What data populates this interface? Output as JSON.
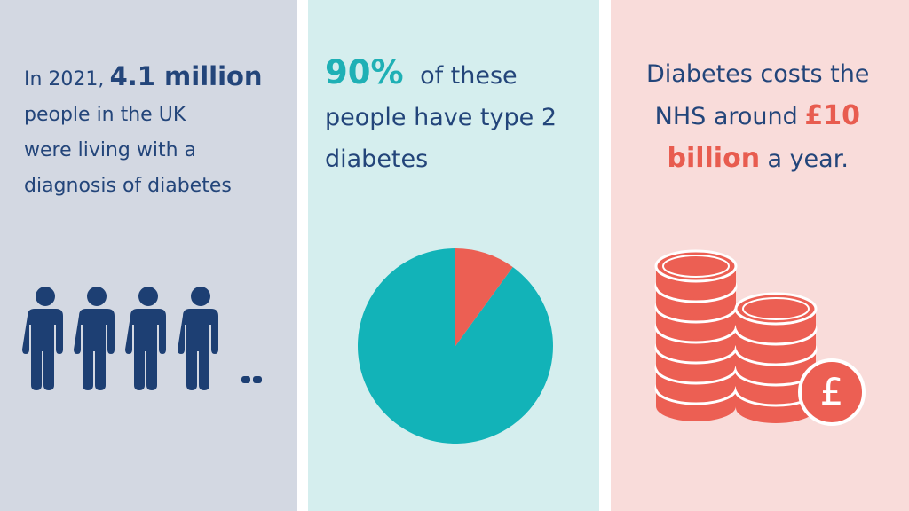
{
  "panels": [
    {
      "lines": [
        [
          {
            "text": "In 2021,"
          },
          {
            "text": "4.1 million",
            "emphasis": true
          }
        ],
        [
          {
            "text": "people in the UK"
          }
        ],
        [
          {
            "text": "were living with a"
          }
        ],
        [
          {
            "text": "diagnosis of diabetes"
          }
        ]
      ]
    },
    {
      "lines": [
        [
          {
            "text": "90%",
            "emphasis": true
          },
          {
            "text": "of these"
          }
        ],
        [
          {
            "text": "people have type 2"
          }
        ],
        [
          {
            "text": "diabetes"
          }
        ]
      ],
      "pie": {
        "values": [
          90,
          10
        ],
        "colors": [
          "#12b3b8",
          "#ec5f53"
        ]
      }
    },
    {
      "lines": [
        [
          {
            "text": "Diabetes costs the"
          }
        ],
        [
          {
            "text": "NHS around"
          },
          {
            "text": "£10",
            "emphasis": true
          }
        ],
        [
          {
            "text": "billion",
            "emphasis": true
          },
          {
            "text": "a year."
          }
        ]
      ],
      "coin_symbol": "£"
    }
  ]
}
